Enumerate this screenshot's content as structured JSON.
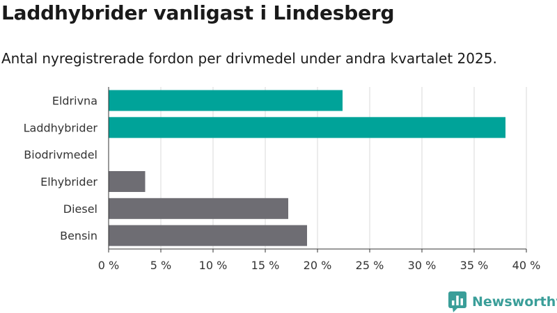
{
  "header": {
    "title": "Laddhybrider vanligast i Lindesberg",
    "subtitle": "Antal nyregistrerade fordon per drivmedel under andra kvartalet 2025."
  },
  "brand": {
    "name": "Newsworthy",
    "logo_icon": "newsworthy-chart-bubble-icon",
    "color": "#3a9e99"
  },
  "colors": {
    "highlight": "#00a399",
    "other": "#6e6d73",
    "grid": "#d9d9d9",
    "axis": "#333333"
  },
  "chart_data": {
    "type": "bar",
    "orientation": "horizontal",
    "categories": [
      "Eldrivna",
      "Laddhybrider",
      "Biodrivmedel",
      "Elhybrider",
      "Diesel",
      "Bensin"
    ],
    "values": [
      22.4,
      38.0,
      0,
      3.5,
      17.2,
      19.0
    ],
    "bar_colors": [
      "#00a399",
      "#00a399",
      "#00a399",
      "#6e6d73",
      "#6e6d73",
      "#6e6d73"
    ],
    "xticks": [
      0,
      5,
      10,
      15,
      20,
      25,
      30,
      35,
      40
    ],
    "xtick_labels": [
      "0 %",
      "5 %",
      "10 %",
      "15 %",
      "20 %",
      "25 %",
      "30 %",
      "35 %",
      "40 %"
    ],
    "xlim": [
      0,
      40
    ],
    "grid": true,
    "legend": false
  }
}
